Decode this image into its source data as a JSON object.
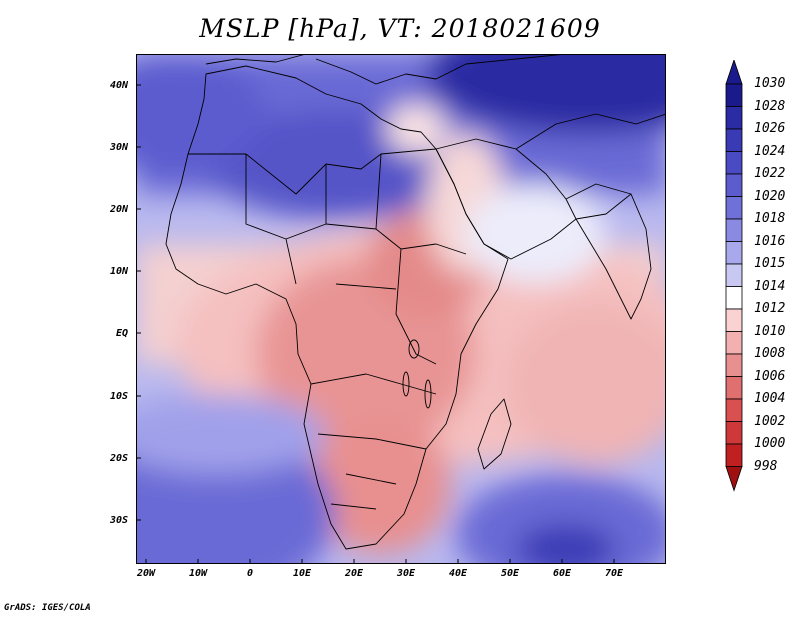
{
  "title": "MSLP [hPa], VT: 2018021609",
  "credit": "GrADS: IGES/COLA",
  "lat_labels": [
    "40N",
    "30N",
    "20N",
    "10N",
    "EQ",
    "10S",
    "20S",
    "30S"
  ],
  "lon_labels": [
    "20W",
    "10W",
    "0",
    "10E",
    "20E",
    "30E",
    "40E",
    "50E",
    "60E",
    "70E"
  ],
  "colorbar": {
    "labels": [
      "1030",
      "1028",
      "1026",
      "1024",
      "1022",
      "1020",
      "1018",
      "1016",
      "1015",
      "1014",
      "1012",
      "1010",
      "1008",
      "1006",
      "1004",
      "1002",
      "1000",
      "998"
    ],
    "colors": [
      "#1a1a8c",
      "#2b2ba3",
      "#3a3ab5",
      "#4a4ac2",
      "#5c5ccf",
      "#7070d9",
      "#8a8ae3",
      "#a8a8ec",
      "#c8c8f3",
      "#ffffff",
      "#fad2d2",
      "#f2b0b0",
      "#e89090",
      "#e07070",
      "#d85050",
      "#cf3838",
      "#c02020",
      "#a01010"
    ]
  },
  "map": {
    "region": "Africa and Middle East",
    "lon_range": [
      -22,
      80
    ],
    "lat_range": [
      -36,
      45
    ],
    "ocean_colors": {
      "high": "#4a4ac2",
      "mid": "#a8a8ec",
      "neutral": "#ffffff",
      "low": "#f2b0b0"
    }
  }
}
